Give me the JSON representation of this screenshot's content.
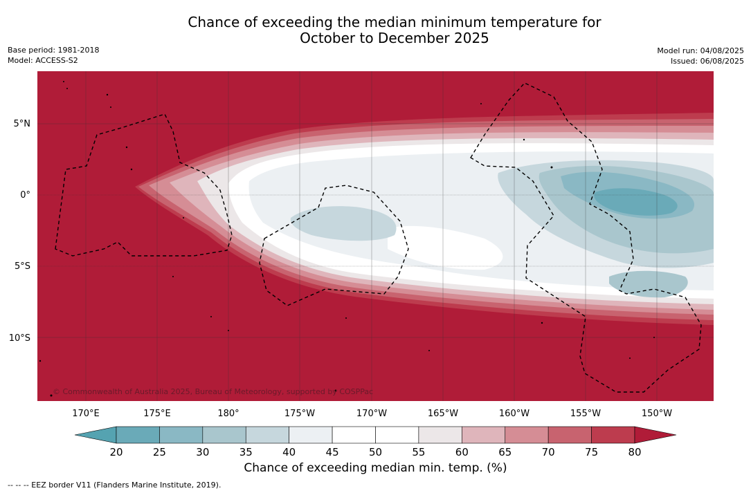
{
  "title_line1": "Chance of exceeding the median minimum temperature for",
  "title_line2": "October to December 2025",
  "base_period": "Base period: 1981-2018",
  "model": "Model: ACCESS-S2",
  "model_run": "Model run: 04/08/2025",
  "issued": "Issued: 06/08/2025",
  "copyright": "© Commonwealth of Australia 2025, Bureau of Meteorology, supported by COSPPac",
  "lat_labels": [
    "5°N",
    "0°",
    "5°S",
    "10°S"
  ],
  "lon_labels": [
    "170°E",
    "175°E",
    "180°",
    "175°W",
    "170°W",
    "165°W",
    "160°W",
    "155°W",
    "150°W"
  ],
  "colorbar": {
    "ticks": [
      "20",
      "25",
      "30",
      "35",
      "40",
      "45",
      "50",
      "55",
      "60",
      "65",
      "70",
      "75",
      "80"
    ],
    "colors": [
      "#6aaab8",
      "#8ab8c4",
      "#a9c6cd",
      "#c6d7dd",
      "#ecf0f3",
      "#ffffff",
      "#ffffff",
      "#ece7e8",
      "#dfb5bb",
      "#d58d95",
      "#c8636f",
      "#bd3c4e"
    ],
    "low_extend_color": "#55a3b1",
    "high_extend_color": "#b01c38",
    "title": "Chance of exceeding median min. temp. (%)"
  },
  "footnote": "-- -- -- EEZ border V11 (Flanders Marine Institute, 2019).",
  "chart_data": {
    "type": "heatmap",
    "field": "Chance of exceeding median minimum temperature (%)",
    "period": "October to December 2025",
    "lon_range": [
      "167°E",
      "148°W"
    ],
    "lat_range": [
      "14°S",
      "8.5°N"
    ],
    "regions": [
      {
        "area": "Outside equatorial band (north and south)",
        "value": ">80"
      },
      {
        "area": "Equatorial band 180°–148°W core",
        "value": "40-55"
      },
      {
        "area": "Central equatorial 160°W–150°W",
        "value": "20-35"
      },
      {
        "area": "South of Line Islands 170°W",
        "value": "35-40"
      }
    ]
  }
}
